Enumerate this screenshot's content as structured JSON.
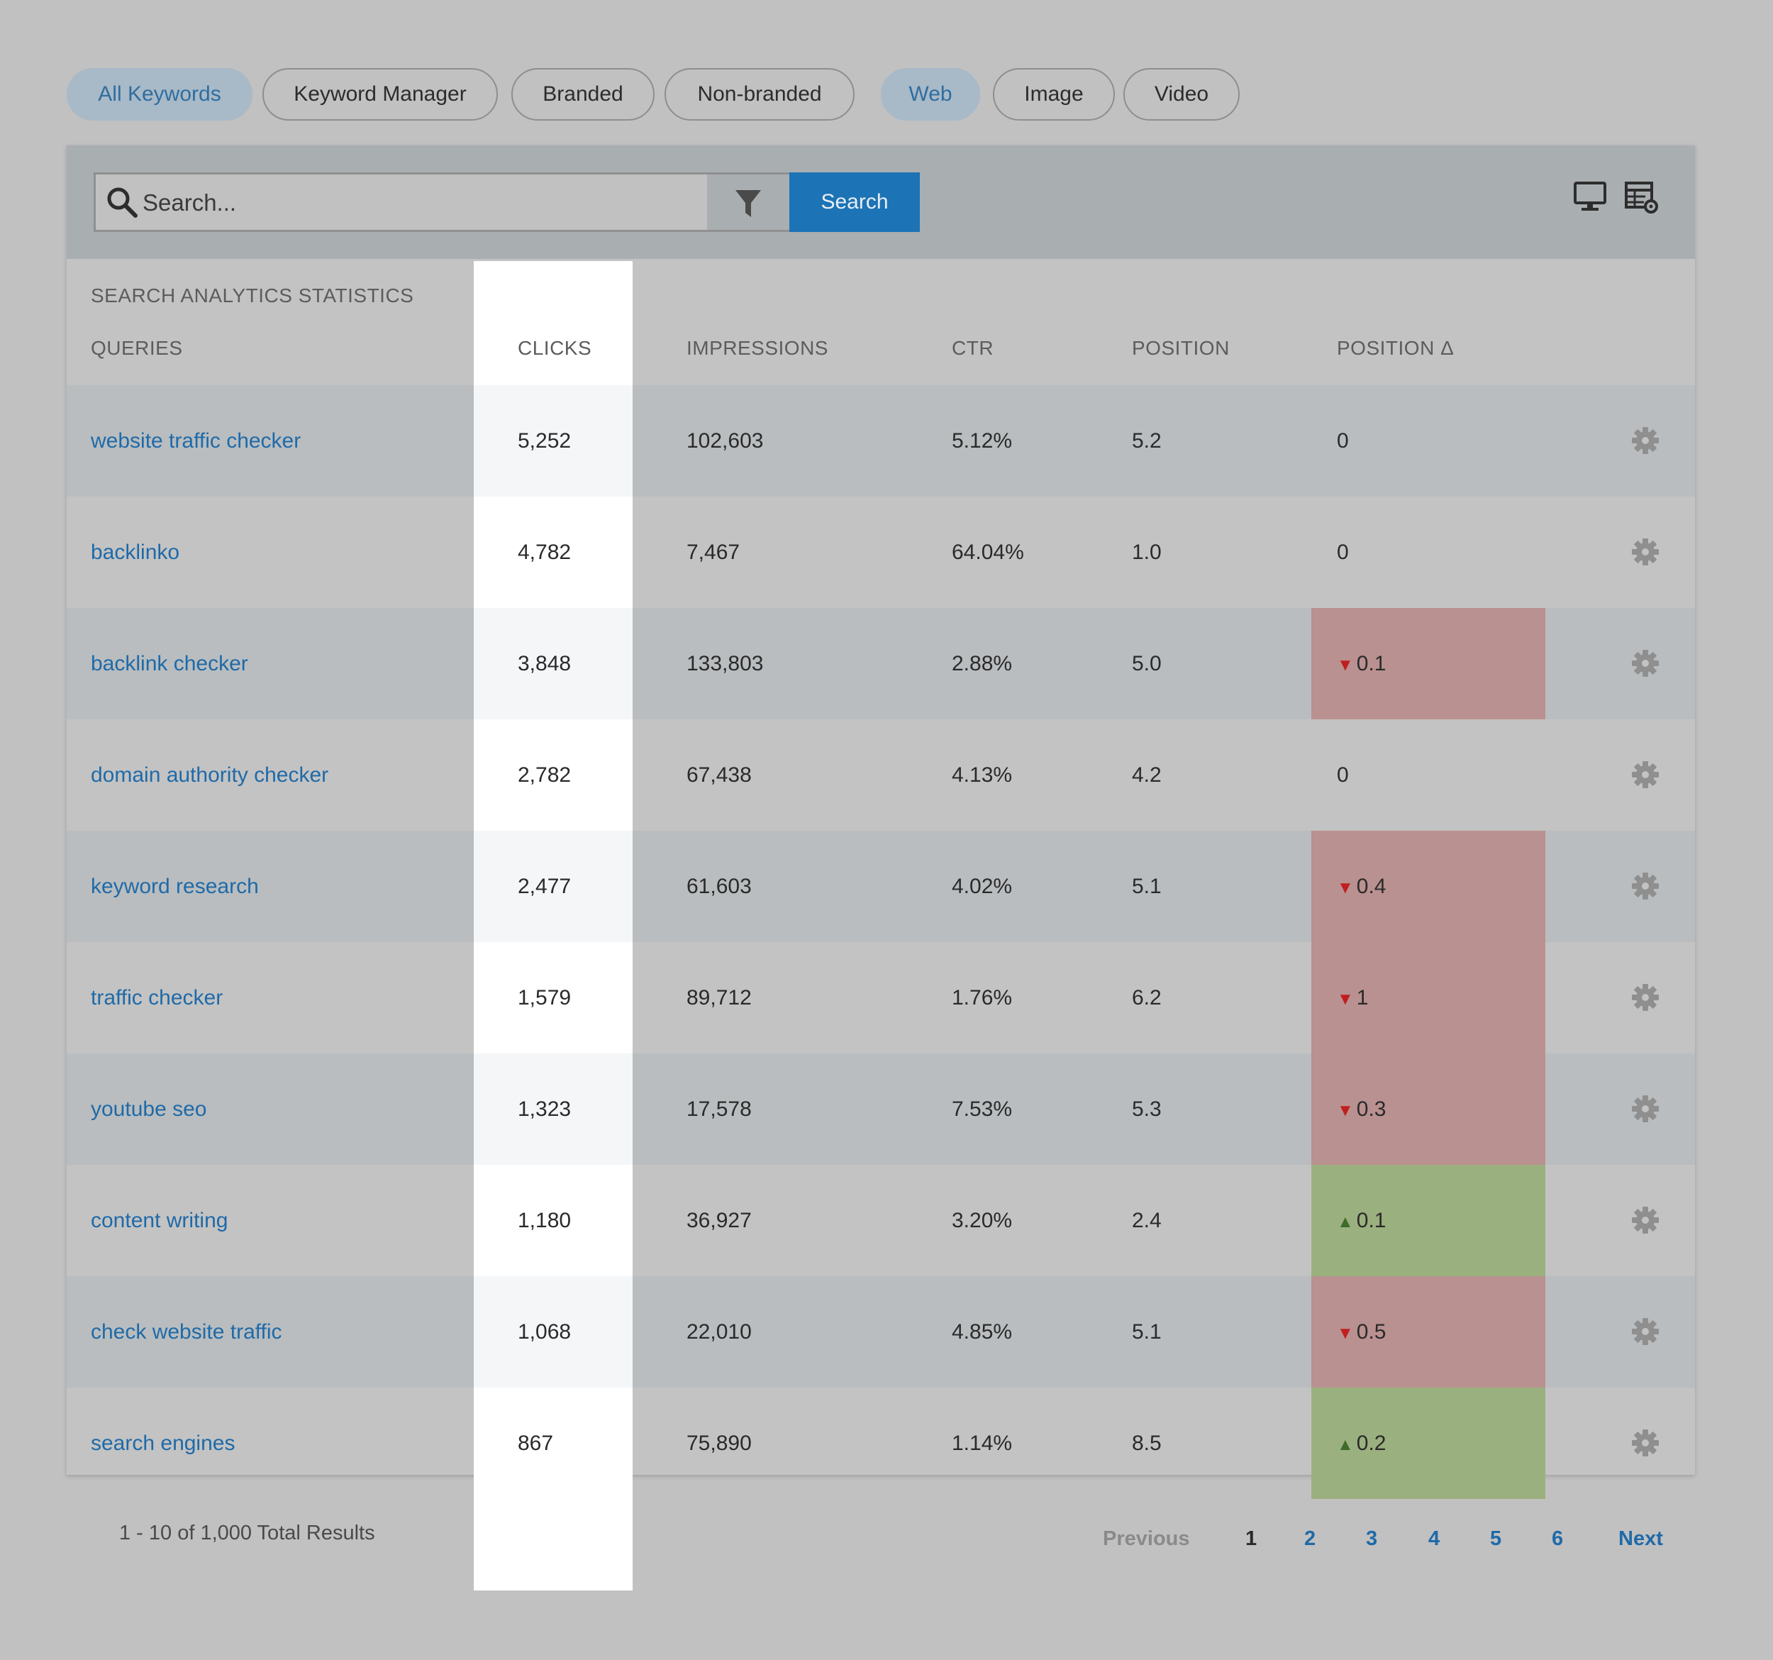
{
  "filters": {
    "keyword_tabs": [
      {
        "label": "All Keywords",
        "active": true
      },
      {
        "label": "Keyword Manager",
        "active": false
      },
      {
        "label": "Branded",
        "active": false
      },
      {
        "label": "Non-branded",
        "active": false
      }
    ],
    "type_tabs": [
      {
        "label": "Web",
        "active": true
      },
      {
        "label": "Image",
        "active": false
      },
      {
        "label": "Video",
        "active": false
      }
    ]
  },
  "toolbar": {
    "search_placeholder": "Search...",
    "search_button": "Search",
    "icons": [
      "search-icon",
      "filter-icon",
      "desktop-icon",
      "table-settings-icon"
    ]
  },
  "table": {
    "section_title": "SEARCH ANALYTICS STATISTICS",
    "columns": [
      "QUERIES",
      "CLICKS",
      "IMPRESSIONS",
      "CTR",
      "POSITION",
      "POSITION Δ"
    ],
    "rows": [
      {
        "query": "website traffic checker",
        "clicks": "5,252",
        "impressions": "102,603",
        "ctr": "5.12%",
        "position": "5.2",
        "delta": "0",
        "trend": "none"
      },
      {
        "query": "backlinko",
        "clicks": "4,782",
        "impressions": "7,467",
        "ctr": "64.04%",
        "position": "1.0",
        "delta": "0",
        "trend": "none"
      },
      {
        "query": "backlink checker",
        "clicks": "3,848",
        "impressions": "133,803",
        "ctr": "2.88%",
        "position": "5.0",
        "delta": "0.1",
        "trend": "down"
      },
      {
        "query": "domain authority checker",
        "clicks": "2,782",
        "impressions": "67,438",
        "ctr": "4.13%",
        "position": "4.2",
        "delta": "0",
        "trend": "none"
      },
      {
        "query": "keyword research",
        "clicks": "2,477",
        "impressions": "61,603",
        "ctr": "4.02%",
        "position": "5.1",
        "delta": "0.4",
        "trend": "down"
      },
      {
        "query": "traffic checker",
        "clicks": "1,579",
        "impressions": "89,712",
        "ctr": "1.76%",
        "position": "6.2",
        "delta": "1",
        "trend": "down"
      },
      {
        "query": "youtube seo",
        "clicks": "1,323",
        "impressions": "17,578",
        "ctr": "7.53%",
        "position": "5.3",
        "delta": "0.3",
        "trend": "down"
      },
      {
        "query": "content writing",
        "clicks": "1,180",
        "impressions": "36,927",
        "ctr": "3.20%",
        "position": "2.4",
        "delta": "0.1",
        "trend": "up"
      },
      {
        "query": "check website traffic",
        "clicks": "1,068",
        "impressions": "22,010",
        "ctr": "4.85%",
        "position": "5.1",
        "delta": "0.5",
        "trend": "down"
      },
      {
        "query": "search engines",
        "clicks": "867",
        "impressions": "75,890",
        "ctr": "1.14%",
        "position": "8.5",
        "delta": "0.2",
        "trend": "up"
      }
    ]
  },
  "footer": {
    "results_text": "1 - 10 of 1,000 Total Results",
    "previous": "Previous",
    "pages": [
      "1",
      "2",
      "3",
      "4",
      "5",
      "6"
    ],
    "current_page": "1",
    "next": "Next"
  },
  "colors": {
    "accent": "#1c73b5",
    "link": "#1f6aa8",
    "down_bg": "#b99190",
    "up_bg": "#9bb07f",
    "down_arrow": "#c01f1f",
    "up_arrow": "#3f6b2a"
  }
}
